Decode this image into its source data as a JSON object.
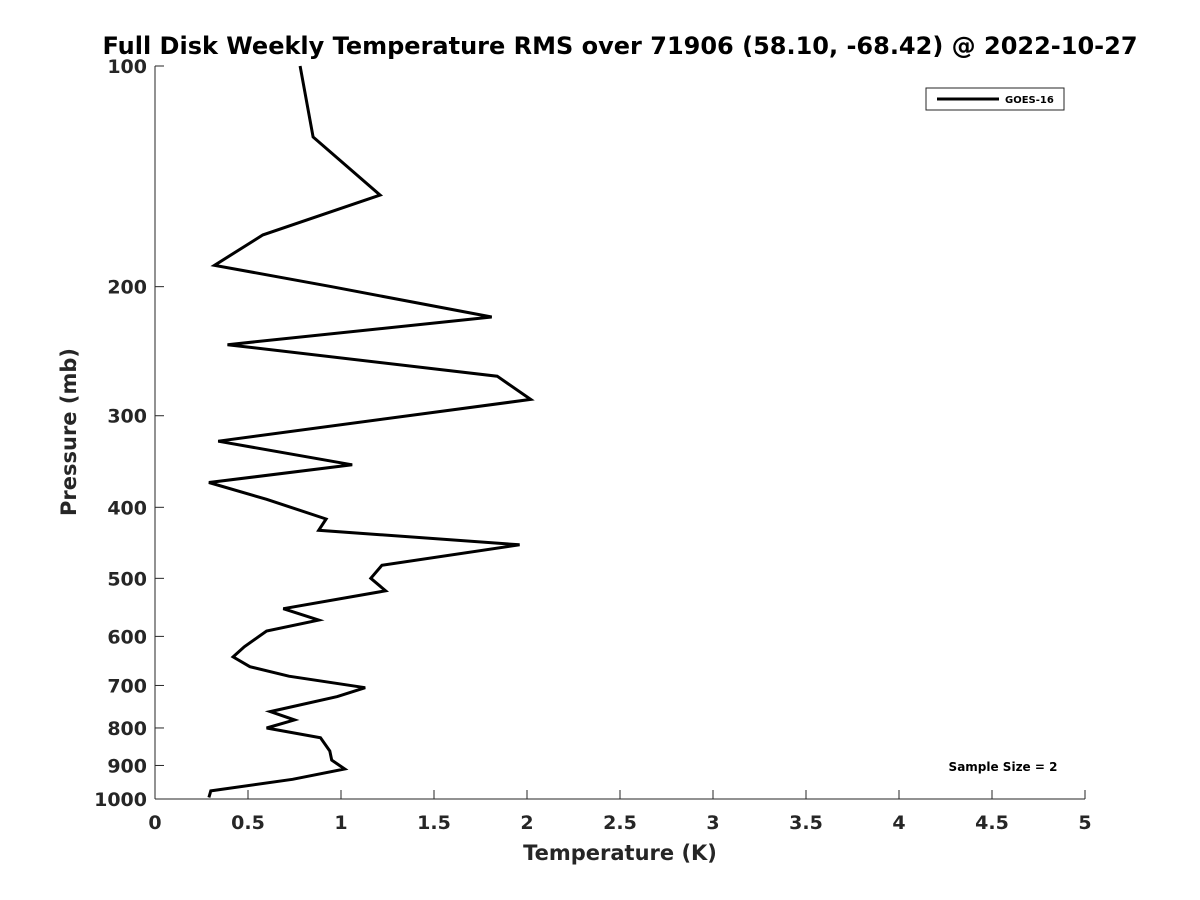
{
  "chart_data": {
    "type": "line",
    "title": "Full Disk Weekly Temperature RMS over 71906 (58.10, -68.42) @ 2022-10-27",
    "xlabel": "Temperature (K)",
    "ylabel": "Pressure (mb)",
    "xlim": [
      0,
      5
    ],
    "ylim": [
      100,
      1000
    ],
    "yscale": "log",
    "y_reversed": true,
    "grid": false,
    "legend_position": "top-right",
    "xticks": [
      "0",
      "0.5",
      "1",
      "1.5",
      "2",
      "2.5",
      "3",
      "3.5",
      "4",
      "4.5",
      "5"
    ],
    "yticks": [
      "100",
      "200",
      "300",
      "400",
      "500",
      "600",
      "700",
      "800",
      "900",
      "1000"
    ],
    "series": [
      {
        "name": "GOES-16",
        "color": "#000000",
        "points": [
          [
            0.78,
            100
          ],
          [
            0.85,
            125
          ],
          [
            1.21,
            150
          ],
          [
            0.58,
            170
          ],
          [
            0.32,
            187
          ],
          [
            0.95,
            200
          ],
          [
            1.81,
            220
          ],
          [
            0.39,
            240
          ],
          [
            1.84,
            265
          ],
          [
            2.02,
            285
          ],
          [
            0.34,
            325
          ],
          [
            1.06,
            350
          ],
          [
            0.29,
            370
          ],
          [
            0.6,
            390
          ],
          [
            0.92,
            415
          ],
          [
            0.88,
            430
          ],
          [
            1.96,
            450
          ],
          [
            1.22,
            480
          ],
          [
            1.16,
            500
          ],
          [
            1.24,
            520
          ],
          [
            0.69,
            550
          ],
          [
            0.88,
            570
          ],
          [
            0.6,
            590
          ],
          [
            0.48,
            620
          ],
          [
            0.42,
            640
          ],
          [
            0.51,
            660
          ],
          [
            0.72,
            680
          ],
          [
            1.13,
            705
          ],
          [
            0.98,
            725
          ],
          [
            0.62,
            760
          ],
          [
            0.75,
            780
          ],
          [
            0.6,
            800
          ],
          [
            0.89,
            825
          ],
          [
            0.94,
            860
          ],
          [
            0.95,
            885
          ],
          [
            1.02,
            910
          ],
          [
            0.74,
            940
          ],
          [
            0.3,
            975
          ],
          [
            0.29,
            995
          ]
        ]
      }
    ],
    "annotation": "Sample Size = 2"
  }
}
